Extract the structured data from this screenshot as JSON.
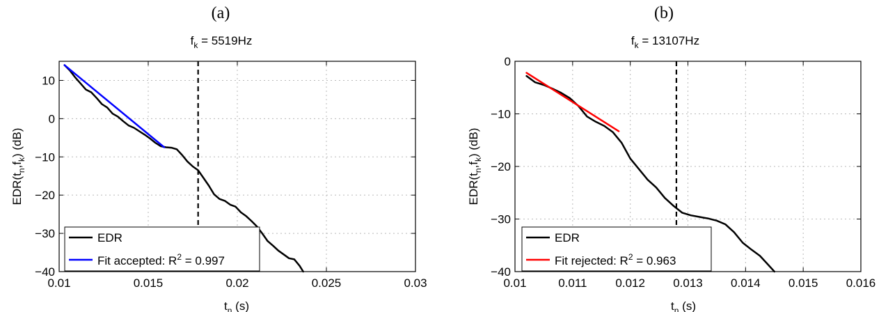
{
  "chart_data": [
    {
      "type": "line",
      "panel_label": "(a)",
      "title": {
        "base": "f",
        "sub": "k",
        "rest": " = 5519Hz"
      },
      "xlabel": {
        "base": "t",
        "sub": "n",
        "rest": " (s)"
      },
      "ylabel": {
        "p1": "EDR(t",
        "s1": "n",
        "p2": ",f",
        "s2": "k",
        "p3": ") (dB)"
      },
      "xlim": [
        0.01,
        0.03
      ],
      "ylim": [
        -40,
        15
      ],
      "xticks": [
        0.01,
        0.015,
        0.02,
        0.025,
        0.03
      ],
      "xtick_labels": [
        "0.01",
        "0.015",
        "0.02",
        "0.025",
        "0.03"
      ],
      "yticks": [
        -40,
        -30,
        -20,
        -10,
        0,
        10
      ],
      "ytick_labels": [
        "−40",
        "−30",
        "−20",
        "−10",
        "0",
        "10"
      ],
      "grid": true,
      "vline_x": 0.0178,
      "legend_position": "bottom-left",
      "series": [
        {
          "name": "EDR",
          "color": "#000000",
          "x": [
            0.0103,
            0.0106,
            0.0109,
            0.0112,
            0.0115,
            0.0118,
            0.0121,
            0.0124,
            0.0127,
            0.013,
            0.0133,
            0.0136,
            0.0139,
            0.0142,
            0.0145,
            0.0148,
            0.0151,
            0.0154,
            0.0157,
            0.016,
            0.0163,
            0.0166,
            0.0169,
            0.0172,
            0.0175,
            0.0178,
            0.0181,
            0.0184,
            0.0187,
            0.019,
            0.0193,
            0.0196,
            0.0199,
            0.0202,
            0.0205,
            0.0208,
            0.0211,
            0.0214,
            0.0217,
            0.022,
            0.0223,
            0.0226,
            0.0229,
            0.0232,
            0.0235,
            0.0237
          ],
          "values": [
            14,
            12.6,
            10.8,
            9.2,
            7.6,
            6.9,
            5.4,
            3.8,
            2.9,
            1.3,
            0.5,
            -0.7,
            -1.8,
            -2.4,
            -3.3,
            -4.2,
            -5.2,
            -6.3,
            -7.2,
            -7.5,
            -7.6,
            -8.0,
            -9.5,
            -11.2,
            -12.5,
            -13.5,
            -15.5,
            -17.5,
            -19.8,
            -21,
            -21.5,
            -22.5,
            -23.0,
            -24.5,
            -25.5,
            -26.8,
            -28.2,
            -30.0,
            -32.0,
            -33.2,
            -34.5,
            -35.5,
            -36.5,
            -36.8,
            -38.5,
            -40
          ]
        },
        {
          "name": "Fit accepted: R",
          "name_sup": "2",
          "name_rest": " = 0.997",
          "color": "#0000ff",
          "x": [
            0.0103,
            0.0159
          ],
          "values": [
            14,
            -7.5
          ]
        }
      ]
    },
    {
      "type": "line",
      "panel_label": "(b)",
      "title": {
        "base": "f",
        "sub": "k",
        "rest": " = 13107Hz"
      },
      "xlabel": {
        "base": "t",
        "sub": "n",
        "rest": " (s)"
      },
      "ylabel": {
        "p1": "EDR(t",
        "s1": "n",
        "p2": ",f",
        "s2": "k",
        "p3": ") (dB)"
      },
      "xlim": [
        0.01,
        0.016
      ],
      "ylim": [
        -40,
        0
      ],
      "xticks": [
        0.01,
        0.011,
        0.012,
        0.013,
        0.014,
        0.015,
        0.016
      ],
      "xtick_labels": [
        "0.01",
        "0.011",
        "0.012",
        "0.013",
        "0.014",
        "0.015",
        "0.016"
      ],
      "yticks": [
        -40,
        -30,
        -20,
        -10,
        0
      ],
      "ytick_labels": [
        "−40",
        "−30",
        "−20",
        "−10",
        "0"
      ],
      "grid": true,
      "vline_x": 0.0128,
      "legend_position": "bottom-left",
      "series": [
        {
          "name": "EDR",
          "color": "#000000",
          "x": [
            0.0102,
            0.01035,
            0.0105,
            0.01065,
            0.0108,
            0.01095,
            0.0111,
            0.01125,
            0.0114,
            0.01155,
            0.0117,
            0.01185,
            0.012,
            0.01215,
            0.0123,
            0.01245,
            0.0126,
            0.01275,
            0.0129,
            0.01305,
            0.0132,
            0.01335,
            0.0135,
            0.01365,
            0.0138,
            0.01395,
            0.0141,
            0.01425,
            0.0144,
            0.0145
          ],
          "values": [
            -2.8,
            -4.0,
            -4.5,
            -5.2,
            -6.0,
            -7.0,
            -8.5,
            -10.5,
            -11.5,
            -12.3,
            -13.5,
            -15.5,
            -18.5,
            -20.5,
            -22.5,
            -24.0,
            -26.0,
            -27.5,
            -28.8,
            -29.3,
            -29.6,
            -29.9,
            -30.3,
            -31.0,
            -32.5,
            -34.5,
            -35.8,
            -37.0,
            -38.8,
            -40
          ]
        },
        {
          "name": "Fit rejected: R",
          "name_sup": "2",
          "name_rest": " = 0.963",
          "color": "#ff0000",
          "x": [
            0.0102,
            0.0118
          ],
          "values": [
            -2.2,
            -13.3
          ]
        }
      ]
    }
  ]
}
